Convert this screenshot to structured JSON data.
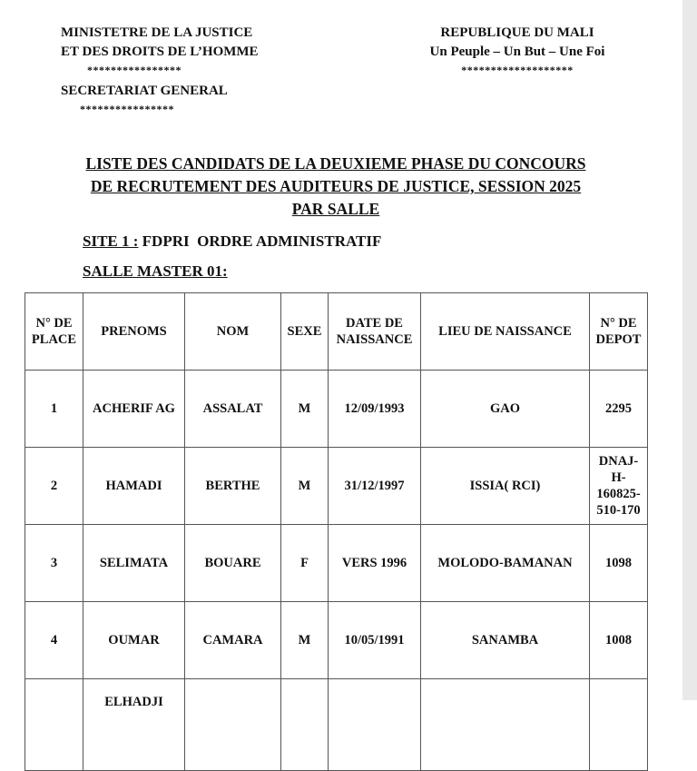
{
  "header_left": {
    "line1": "MINISTETRE DE LA JUSTICE",
    "line2": "ET DES DROITS DE L’HOMME",
    "stars1": "****************",
    "line3": "SECRETARIAT GENERAL",
    "stars2": "****************"
  },
  "header_right": {
    "line1": "REPUBLIQUE DU MALI",
    "line2": "Un Peuple – Un But – Une Foi",
    "stars": "*******************"
  },
  "title": {
    "line1": "LISTE DES CANDIDATS DE LA DEUXIEME PHASE DU CONCOURS",
    "line2": "DE RECRUTEMENT DES AUDITEURS DE JUSTICE, SESSION 2025",
    "line3": "PAR SALLE"
  },
  "site": {
    "label": "SITE 1 :",
    "value": " FDPRI  ORDRE ADMINISTRATIF"
  },
  "salle": "SALLE MASTER 01:",
  "table": {
    "headers": [
      "N° DE PLACE",
      "PRENOMS",
      "NOM",
      "SEXE",
      "DATE DE NAISSANCE",
      "LIEU DE NAISSANCE",
      "N° DE DEPOT"
    ],
    "rows": [
      [
        "1",
        "ACHERIF AG",
        "ASSALAT",
        "M",
        "12/09/1993",
        "GAO",
        "2295"
      ],
      [
        "2",
        "HAMADI",
        "BERTHE",
        "M",
        "31/12/1997",
        "ISSIA( RCI)",
        "DNAJ-H-160825-510-170"
      ],
      [
        "3",
        "SELIMATA",
        "BOUARE",
        "F",
        "VERS 1996",
        "MOLODO-BAMANAN",
        "1098"
      ],
      [
        "4",
        "OUMAR",
        "CAMARA",
        "M",
        "10/05/1991",
        "SANAMBA",
        "1008"
      ],
      [
        "",
        "ELHADJI",
        "",
        "",
        "",
        "",
        ""
      ]
    ]
  }
}
